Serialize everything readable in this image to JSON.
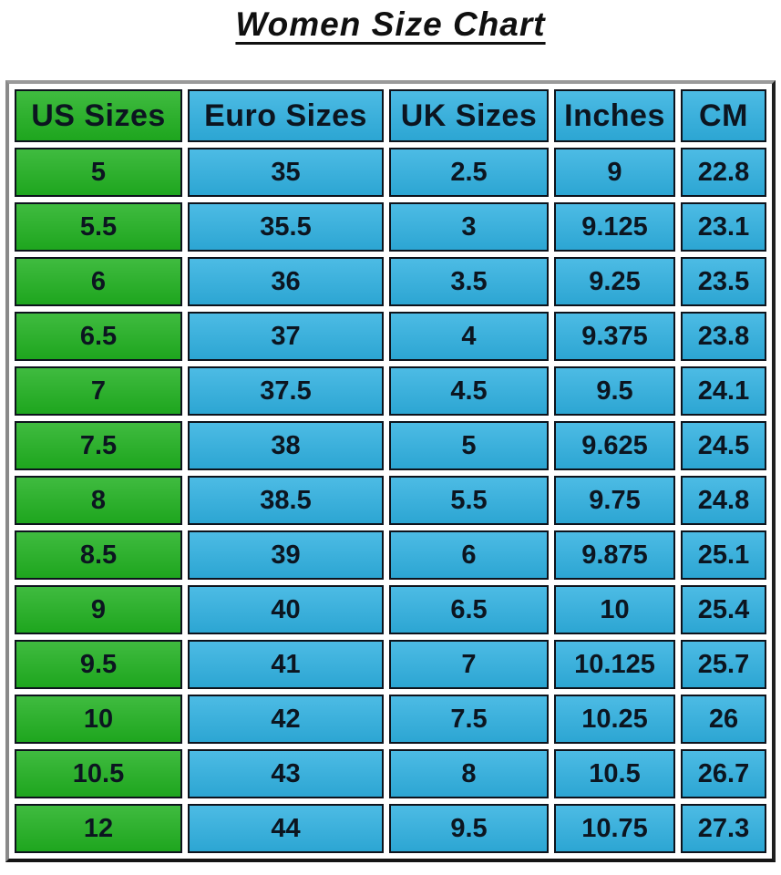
{
  "chart_data": {
    "type": "table",
    "title": "Women Size Chart",
    "columns": [
      "US Sizes",
      "Euro Sizes",
      "UK Sizes",
      "Inches",
      "CM"
    ],
    "rows": [
      [
        "5",
        "35",
        "2.5",
        "9",
        "22.8"
      ],
      [
        "5.5",
        "35.5",
        "3",
        "9.125",
        "23.1"
      ],
      [
        "6",
        "36",
        "3.5",
        "9.25",
        "23.5"
      ],
      [
        "6.5",
        "37",
        "4",
        "9.375",
        "23.8"
      ],
      [
        "7",
        "37.5",
        "4.5",
        "9.5",
        "24.1"
      ],
      [
        "7.5",
        "38",
        "5",
        "9.625",
        "24.5"
      ],
      [
        "8",
        "38.5",
        "5.5",
        "9.75",
        "24.8"
      ],
      [
        "8.5",
        "39",
        "6",
        "9.875",
        "25.1"
      ],
      [
        "9",
        "40",
        "6.5",
        "10",
        "25.4"
      ],
      [
        "9.5",
        "41",
        "7",
        "10.125",
        "25.7"
      ],
      [
        "10",
        "42",
        "7.5",
        "10.25",
        "26"
      ],
      [
        "10.5",
        "43",
        "8",
        "10.5",
        "26.7"
      ],
      [
        "12",
        "44",
        "9.5",
        "10.75",
        "27.3"
      ]
    ],
    "layout": {
      "legend": "none",
      "grid": "cell-borders",
      "highlight_column": "US Sizes"
    }
  },
  "colors": {
    "us_column_bg": "#20B020",
    "other_columns_bg": "#2FB0E0",
    "cell_border": "#0D131C",
    "text": "#0C1520",
    "page_bg": "#FFFFFF"
  }
}
